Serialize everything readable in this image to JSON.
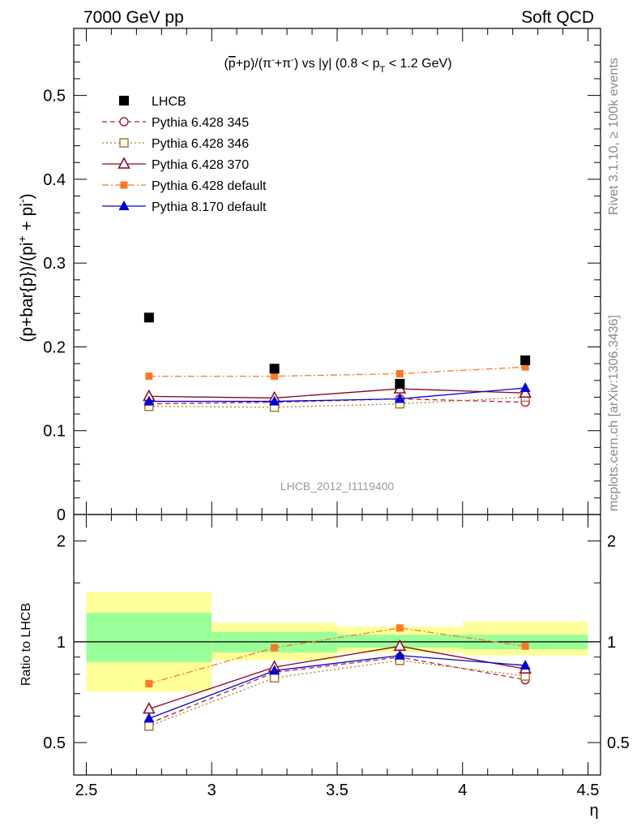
{
  "header": {
    "left": "7000 GeV pp",
    "right": "Soft QCD"
  },
  "side_text": {
    "rivet": "Rivet 3.1.10, ≥ 100k events",
    "mcplots": "mcplots.cern.ch [arXiv:1306.3436]"
  },
  "main_title": {
    "prefix": "(",
    "pbar": "p",
    "mid1": "+p)/(π",
    "sup1": "-",
    "mid2": "+π",
    "sup2": "-",
    "mid3": ") vs |y| (0.8 < p",
    "sub": "T",
    "suffix": " < 1.2 GeV)"
  },
  "y_label_main": {
    "base": "(p+bar{p})/(pi",
    "sup1": "+",
    "mid": " + pi",
    "sup2": "-",
    "end": ")"
  },
  "y_label_ratio": "Ratio to LHCB",
  "x_label": "η",
  "watermark": "LHCB_2012_I1119400",
  "legend_names": [
    "LHCB",
    "Pythia 6.428 345",
    "Pythia 6.428 346",
    "Pythia 6.428 370",
    "Pythia 6.428 default",
    "Pythia 8.170 default"
  ],
  "chart_data": {
    "type": "scatter",
    "x": [
      2.75,
      3.25,
      3.75,
      4.25
    ],
    "x_bins": [
      [
        2.5,
        3.0
      ],
      [
        3.0,
        3.5
      ],
      [
        3.5,
        4.0
      ],
      [
        4.0,
        4.5
      ]
    ],
    "xlim": [
      2.45,
      4.55
    ],
    "main": {
      "ylim": [
        0,
        0.58
      ],
      "yticks": [
        0,
        0.1,
        0.2,
        0.3,
        0.4,
        0.5
      ],
      "ytick_labels": [
        "0",
        "0.1",
        "0.2",
        "0.3",
        "0.4",
        "0.5"
      ]
    },
    "ratio": {
      "ylim": [
        0.4,
        2.4
      ],
      "log": true,
      "yticks": [
        0.5,
        1,
        2
      ],
      "ytick_labels": [
        "0.5",
        "1",
        "2"
      ],
      "band_inner": [
        [
          0.87,
          1.22
        ],
        [
          0.93,
          1.07
        ],
        [
          0.96,
          1.05
        ],
        [
          0.95,
          1.05
        ]
      ],
      "band_outer": [
        [
          0.71,
          1.41
        ],
        [
          0.88,
          1.14
        ],
        [
          0.93,
          1.11
        ],
        [
          0.91,
          1.15
        ]
      ],
      "band_inner_color": "#99ff99",
      "band_outer_color": "#ffff99"
    },
    "xticks": [
      2.5,
      3,
      3.5,
      4,
      4.5
    ],
    "xtick_labels": [
      "2.5",
      "3",
      "3.5",
      "4",
      "4.5"
    ],
    "series": [
      {
        "name": "LHCB",
        "values": [
          0.235,
          0.174,
          0.156,
          0.184
        ],
        "ratio": [],
        "color": "#000000",
        "marker": "square-filled",
        "line": "none"
      },
      {
        "name": "Pythia 6.428 345",
        "values": [
          0.132,
          0.134,
          0.138,
          0.134
        ],
        "ratio": [
          0.57,
          0.81,
          0.9,
          0.77
        ],
        "color": "#b22234",
        "marker": "circle-open",
        "line": "dashed"
      },
      {
        "name": "Pythia 6.428 346",
        "values": [
          0.129,
          0.128,
          0.132,
          0.14
        ],
        "ratio": [
          0.56,
          0.78,
          0.88,
          0.79
        ],
        "color": "#a67c2e",
        "marker": "square-open",
        "line": "dotted"
      },
      {
        "name": "Pythia 6.428 370",
        "values": [
          0.141,
          0.139,
          0.15,
          0.145
        ],
        "ratio": [
          0.63,
          0.84,
          0.97,
          0.83
        ],
        "color": "#8b0020",
        "marker": "triangle-open",
        "line": "solid"
      },
      {
        "name": "Pythia 6.428 default",
        "values": [
          0.165,
          0.165,
          0.168,
          0.176
        ],
        "ratio": [
          0.75,
          0.96,
          1.1,
          0.97
        ],
        "color": "#ff7722",
        "marker": "square-filled-small",
        "line": "dashdot"
      },
      {
        "name": "Pythia 8.170 default",
        "values": [
          0.135,
          0.135,
          0.138,
          0.151
        ],
        "ratio": [
          0.59,
          0.82,
          0.91,
          0.85
        ],
        "color": "#0000dd",
        "marker": "triangle-filled",
        "line": "solid"
      }
    ]
  }
}
